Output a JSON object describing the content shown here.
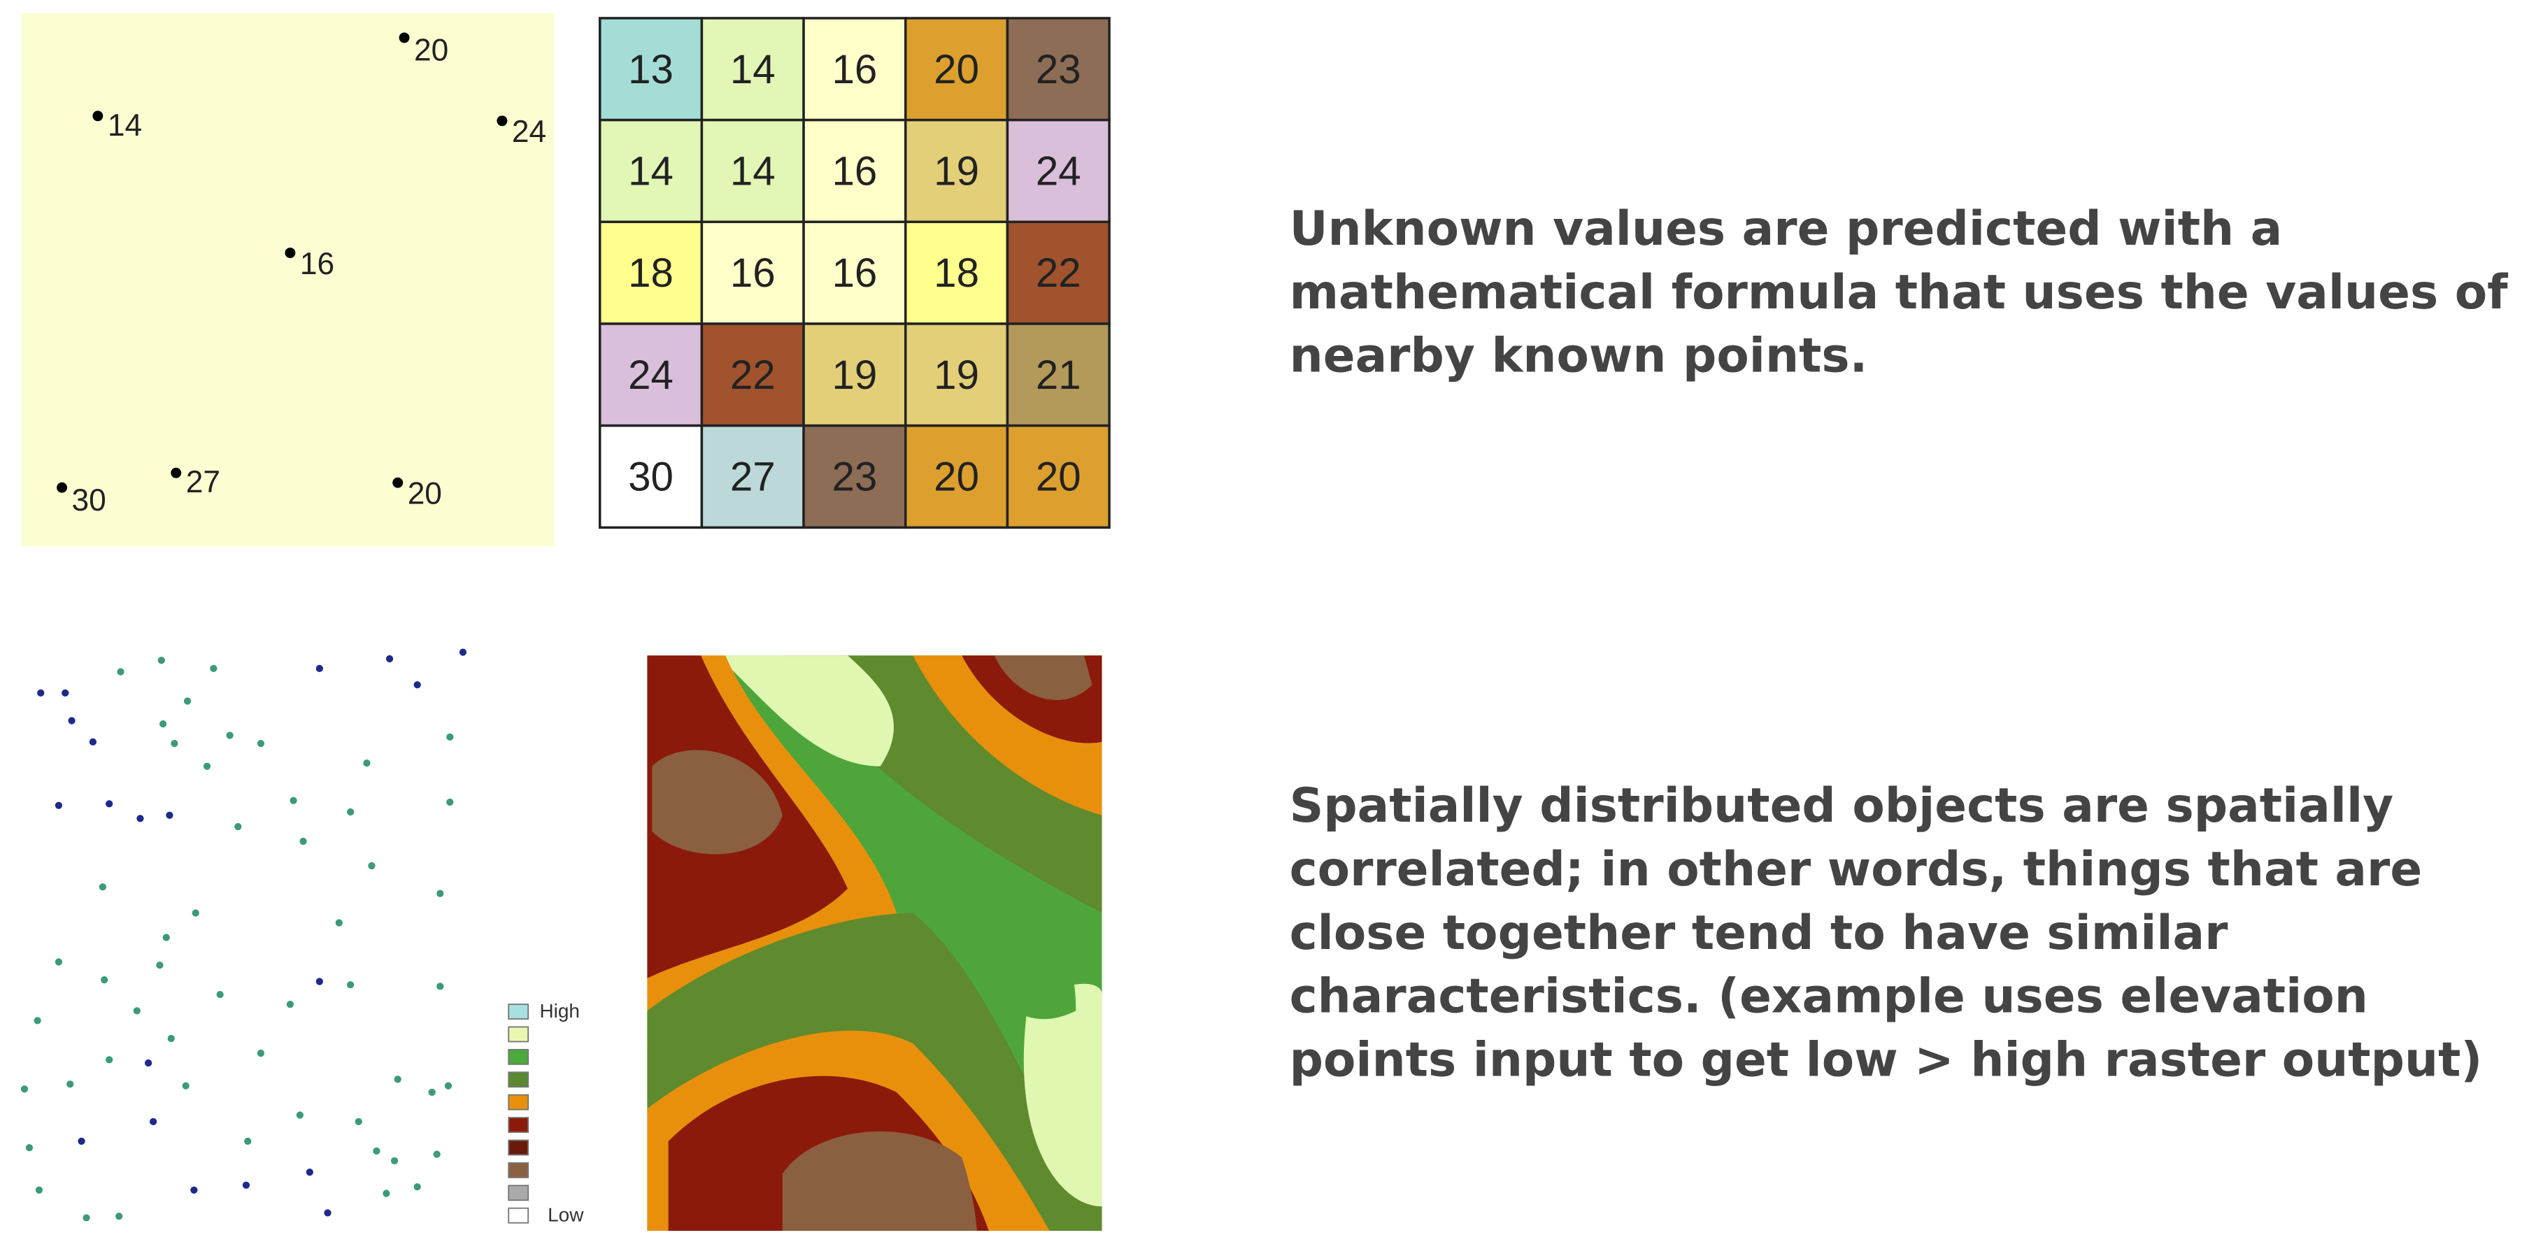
{
  "point_map": {
    "points": [
      "20",
      "14",
      "24",
      "16",
      "30",
      "27",
      "20"
    ]
  },
  "grid": {
    "rows": [
      [
        {
          "value": "13",
          "color": "#a3ddd6"
        },
        {
          "value": "14",
          "color": "#e2f6b5"
        },
        {
          "value": "16",
          "color": "#ffffca"
        },
        {
          "value": "20",
          "color": "#dd9f2e"
        },
        {
          "value": "23",
          "color": "#8d6d56"
        }
      ],
      [
        {
          "value": "14",
          "color": "#e2f6b5"
        },
        {
          "value": "14",
          "color": "#e2f6b5"
        },
        {
          "value": "16",
          "color": "#ffffca"
        },
        {
          "value": "19",
          "color": "#e2cf78"
        },
        {
          "value": "24",
          "color": "#d9bfd9"
        }
      ],
      [
        {
          "value": "18",
          "color": "#ffff8e"
        },
        {
          "value": "16",
          "color": "#ffffca"
        },
        {
          "value": "16",
          "color": "#ffffca"
        },
        {
          "value": "18",
          "color": "#ffff8e"
        },
        {
          "value": "22",
          "color": "#a0532d"
        }
      ],
      [
        {
          "value": "24",
          "color": "#d9bfd9"
        },
        {
          "value": "22",
          "color": "#a0532d"
        },
        {
          "value": "19",
          "color": "#e2cf78"
        },
        {
          "value": "19",
          "color": "#e2cf78"
        },
        {
          "value": "21",
          "color": "#b39a5a"
        }
      ],
      [
        {
          "value": "30",
          "color": "#ffffff"
        },
        {
          "value": "27",
          "color": "#bcd8d8"
        },
        {
          "value": "23",
          "color": "#8d6d56"
        },
        {
          "value": "20",
          "color": "#dd9f2e"
        },
        {
          "value": "20",
          "color": "#dd9f2e"
        }
      ]
    ]
  },
  "legend": {
    "high": "High",
    "low": "Low"
  },
  "text": {
    "paragraphs": [
      [
        "Unknown values are predicted with a",
        "mathematical formula that uses the values of",
        "nearby known points."
      ],
      [
        "Spatially distributed objects are spatially",
        "correlated; in other words, things that are",
        "close together tend to have similar",
        "characteristics. (example uses elevation",
        "points input to get low > high raster output)"
      ]
    ]
  }
}
